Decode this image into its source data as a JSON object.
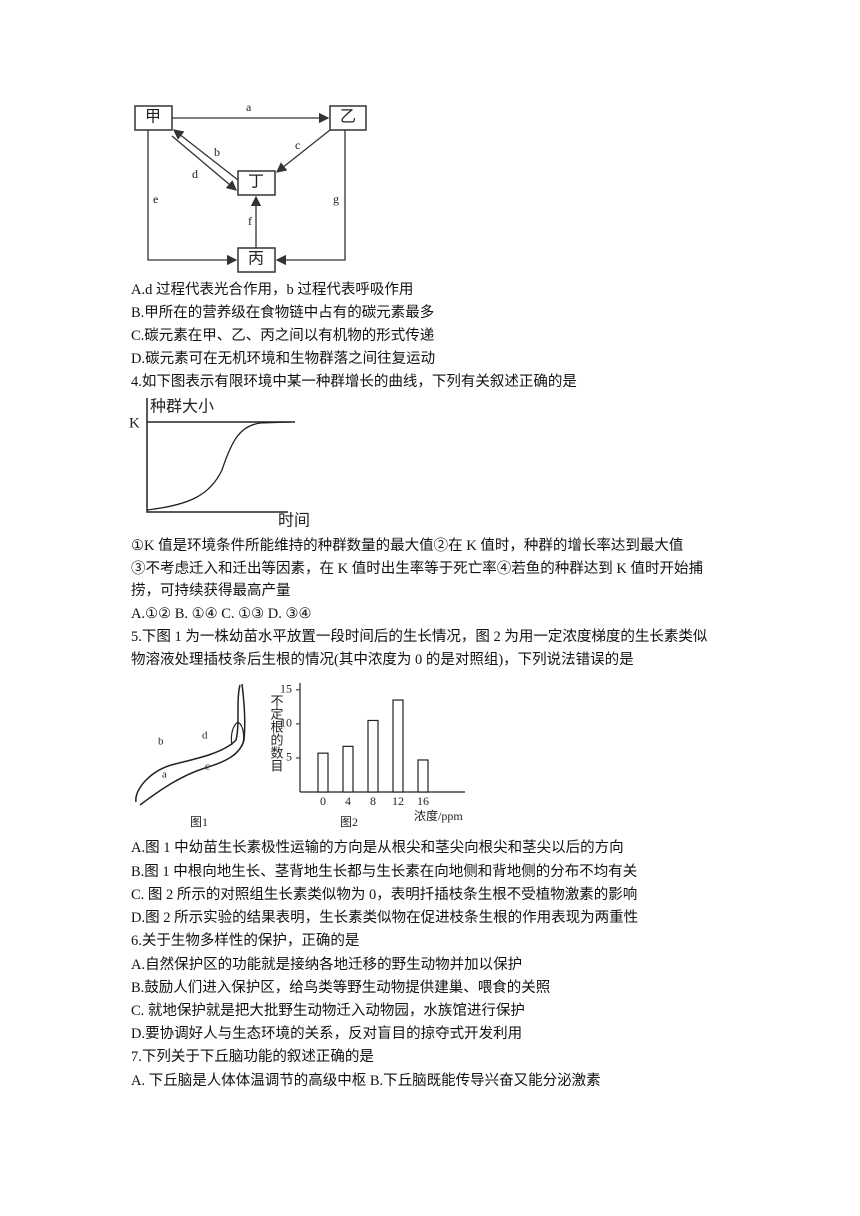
{
  "q3": {
    "diagram": {
      "nodes": [
        "甲",
        "乙",
        "丙",
        "丁"
      ],
      "edges": [
        "a",
        "b",
        "c",
        "d",
        "e",
        "f",
        "g"
      ]
    },
    "options": [
      "A.d 过程代表光合作用，b 过程代表呼吸作用",
      "B.甲所在的营养级在食物链中占有的碳元素最多",
      "C.碳元素在甲、乙、丙之间以有机物的形式传递",
      "D.碳元素可在无机环境和生物群落之间往复运动"
    ]
  },
  "q4": {
    "stem": "4.如下图表示有限环境中某一种群增长的曲线，下列有关叙述正确的是",
    "graph": {
      "y_label": "种群大小",
      "k_label": "K",
      "x_label": "时间"
    },
    "statements": [
      "①K 值是环境条件所能维持的种群数量的最大值②在 K 值时，种群的增长率达到最大值",
      "③不考虑迁入和迁出等因素，在 K 值时出生率等于死亡率④若鱼的种群达到 K 值时开始捕",
      "捞，可持续获得最高产量"
    ],
    "options": "A.①② B. ①④ C. ①③ D. ③④"
  },
  "q5": {
    "stem": [
      "5.下图 1 为一株幼苗水平放置一段时间后的生长情况，图 2 为用一定浓度梯度的生长素类似",
      "物溶液处理插枝条后生根的情况(其中浓度为 0 的是对照组)，下列说法错误的是"
    ],
    "figure1": {
      "labels": [
        "a",
        "b",
        "c",
        "d"
      ],
      "caption": "图1"
    },
    "figure2": {
      "type": "bar",
      "y_label": "不定根的数目",
      "x_label": "浓度/ppm",
      "caption": "图2",
      "categories": [
        "0",
        "4",
        "8",
        "12",
        "16"
      ],
      "values": [
        5.7,
        6.7,
        10.5,
        13.5,
        4.7
      ],
      "ylim": [
        0,
        16
      ],
      "yticks": [
        5,
        10,
        15
      ]
    },
    "options": [
      "A.图 1 中幼苗生长素极性运输的方向是从根尖和茎尖向根尖和茎尖以后的方向",
      "B.图 1 中根向地生长、茎背地生长都与生长素在向地侧和背地侧的分布不均有关",
      "C. 图 2 所示的对照组生长素类似物为 0，表明扦插枝条生根不受植物激素的影响",
      "D.图 2 所示实验的结果表明，生长素类似物在促进枝条生根的作用表现为两重性"
    ]
  },
  "q6": {
    "stem": "6.关于生物多样性的保护，正确的是",
    "options": [
      "A.自然保护区的功能就是接纳各地迁移的野生动物并加以保护",
      "B.鼓励人们进入保护区，给鸟类等野生动物提供建巢、喂食的关照",
      "C. 就地保护就是把大批野生动物迁入动物园，水族馆进行保护",
      "D.要协调好人与生态环境的关系，反对盲目的掠夺式开发利用"
    ]
  },
  "q7": {
    "stem": "7.下列关于下丘脑功能的叙述正确的是",
    "options": [
      "A. 下丘脑是人体体温调节的高级中枢 B.下丘脑既能传导兴奋又能分泌激素"
    ]
  }
}
